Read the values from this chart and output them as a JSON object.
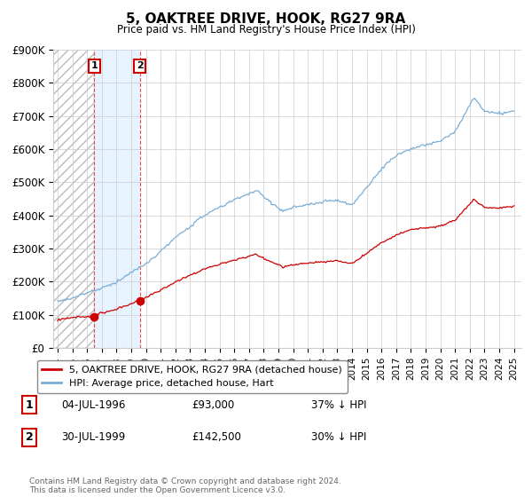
{
  "title": "5, OAKTREE DRIVE, HOOK, RG27 9RA",
  "subtitle": "Price paid vs. HM Land Registry's House Price Index (HPI)",
  "ylim": [
    0,
    900000
  ],
  "yticks": [
    0,
    100000,
    200000,
    300000,
    400000,
    500000,
    600000,
    700000,
    800000,
    900000
  ],
  "ytick_labels": [
    "£0",
    "£100K",
    "£200K",
    "£300K",
    "£400K",
    "£500K",
    "£600K",
    "£700K",
    "£800K",
    "£900K"
  ],
  "hpi_color": "#7aaed6",
  "price_color": "#cc0000",
  "sale1_date_num": 1996.5,
  "sale1_price": 93000,
  "sale1_label": "1",
  "sale1_date_str": "04-JUL-1996",
  "sale1_price_str": "£93,000",
  "sale1_hpi_str": "37% ↓ HPI",
  "sale2_date_num": 1999.58,
  "sale2_price": 142500,
  "sale2_label": "2",
  "sale2_date_str": "30-JUL-1999",
  "sale2_price_str": "£142,500",
  "sale2_hpi_str": "30% ↓ HPI",
  "legend_property": "5, OAKTREE DRIVE, HOOK, RG27 9RA (detached house)",
  "legend_hpi": "HPI: Average price, detached house, Hart",
  "footnote": "Contains HM Land Registry data © Crown copyright and database right 2024.\nThis data is licensed under the Open Government Licence v3.0.",
  "xlim_start": 1993.7,
  "xlim_end": 2025.5
}
